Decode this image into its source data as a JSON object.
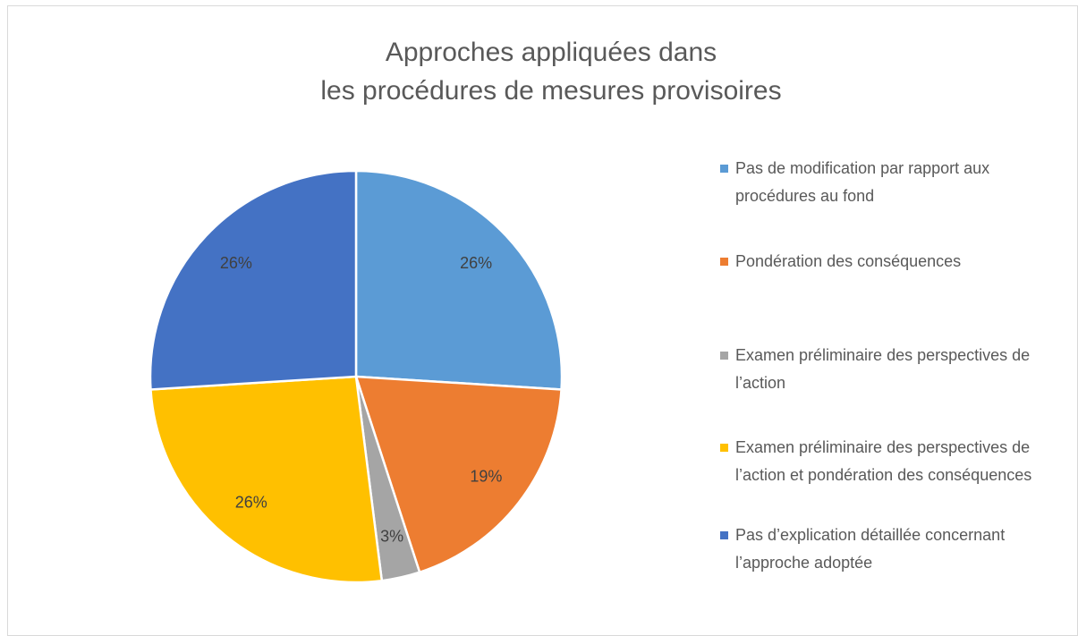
{
  "chart_data": {
    "type": "pie",
    "title": [
      "Approches appliquées dans",
      "les procédures de mesures provisoires"
    ],
    "categories": [
      "Pas de modification par rapport aux procédures au fond",
      "Pondération des conséquences",
      "Examen préliminaire des perspectives de l’action",
      "Examen préliminaire des perspectives de l’action et pondération des conséquences",
      "Pas d’explication détaillée concernant l’approche adoptée"
    ],
    "values": [
      26,
      19,
      3,
      26,
      26
    ],
    "value_labels": [
      "26%",
      "19%",
      "3%",
      "26%",
      "26%"
    ],
    "colors": [
      "#5b9bd5",
      "#ed7d31",
      "#a5a5a5",
      "#ffc000",
      "#4472c4"
    ],
    "legend": "right"
  }
}
